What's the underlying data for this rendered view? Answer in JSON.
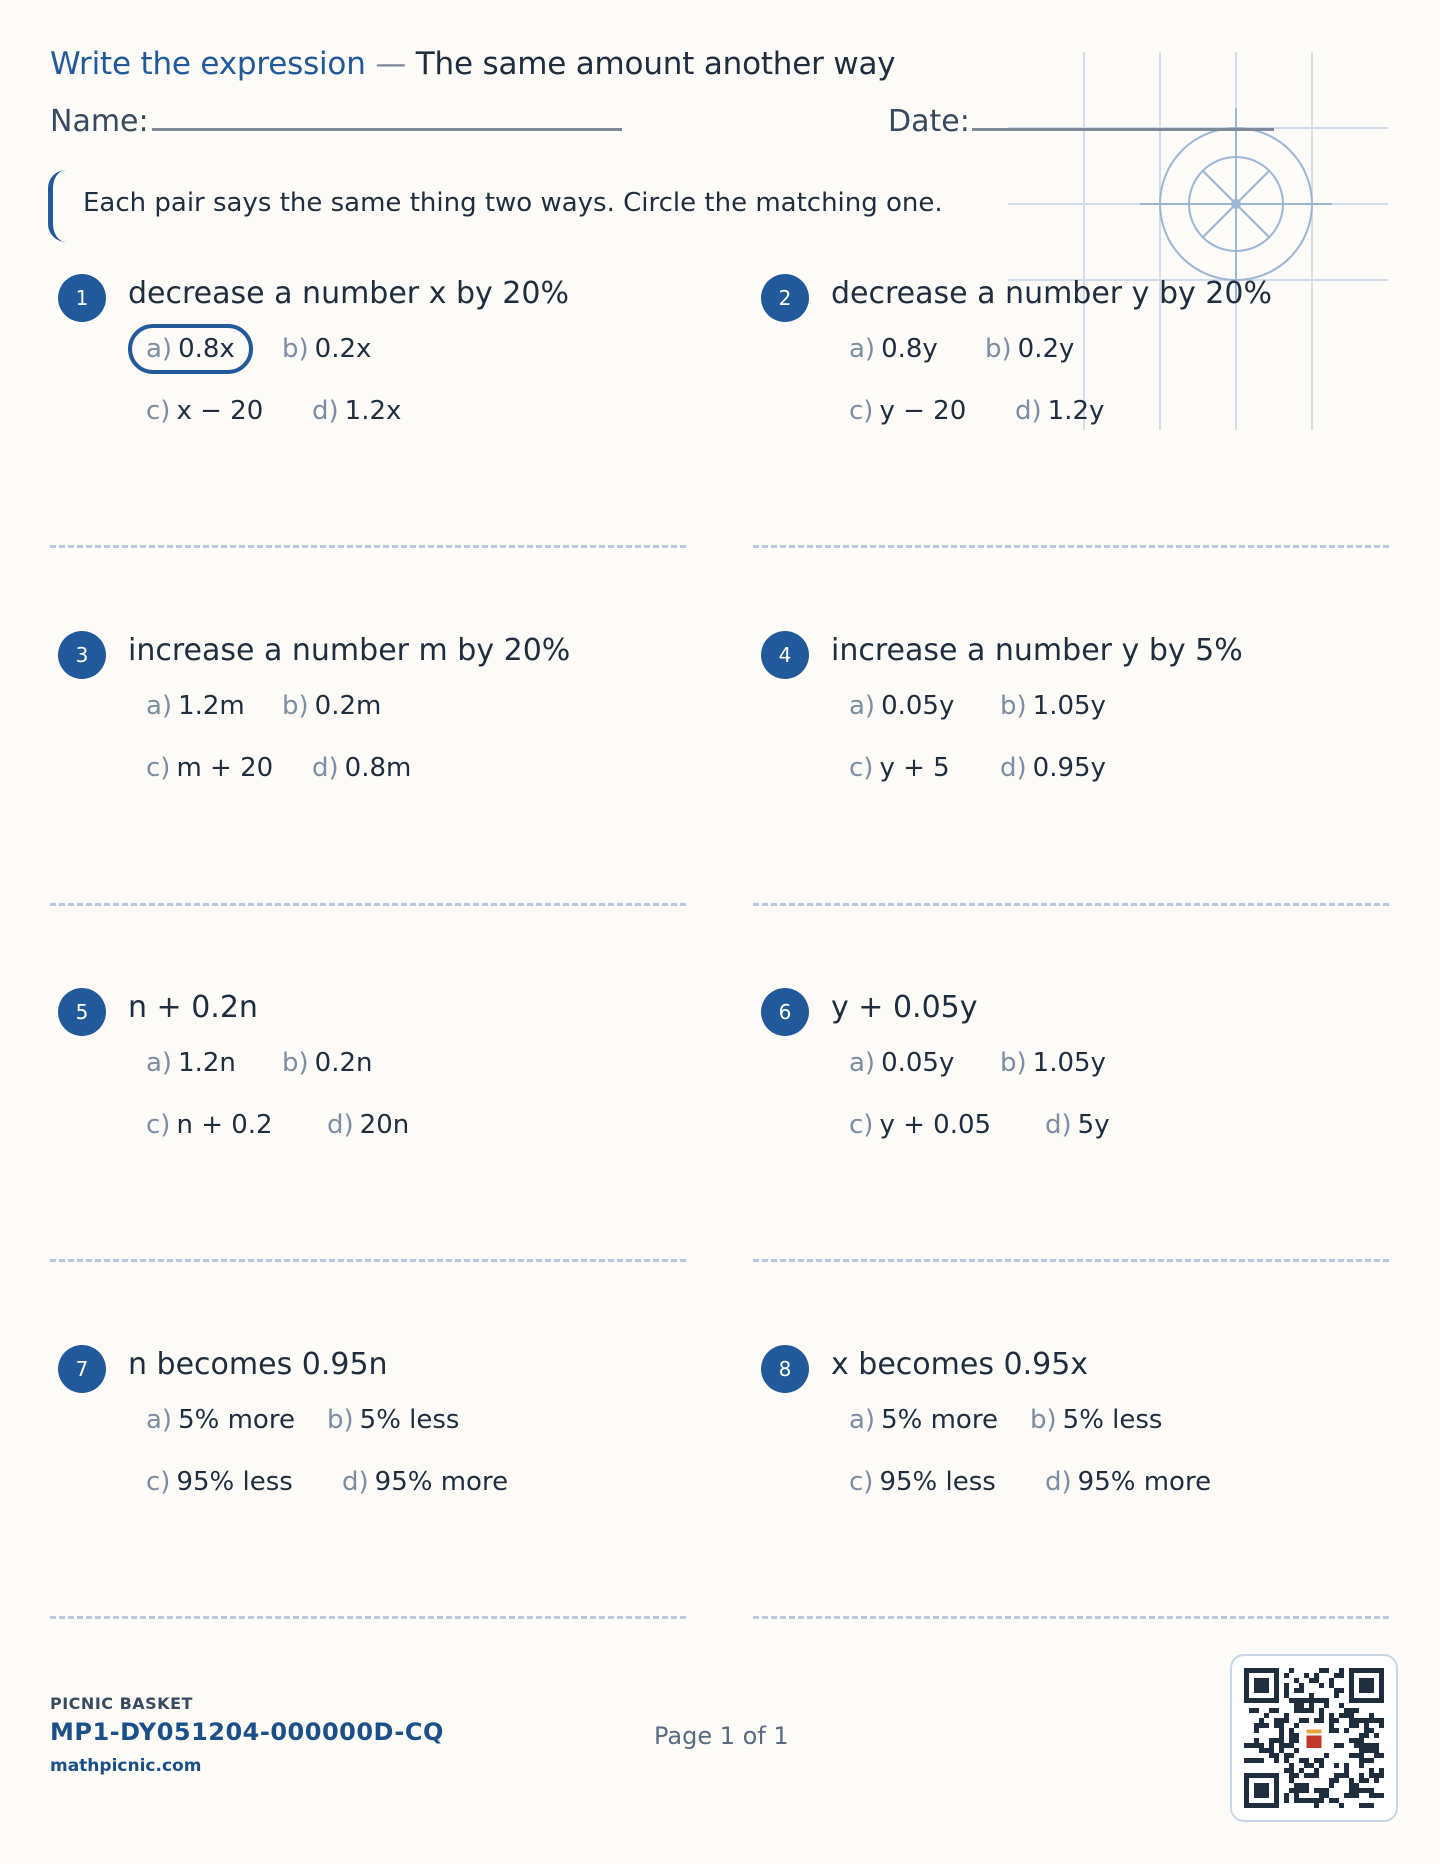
{
  "header": {
    "title_part1": "Write the expression",
    "title_dash": "—",
    "title_part2": "The same amount another way",
    "name_label": "Name:",
    "date_label": "Date:"
  },
  "instructions": "Each pair says the same thing two ways. Circle the matching one.",
  "questions": [
    {
      "num": "1",
      "prompt": "decrease a number x by 20%",
      "options": [
        {
          "label": "a)",
          "text": "0.8x",
          "circled": true
        },
        {
          "label": "b)",
          "text": "0.2x"
        },
        {
          "label": "c)",
          "text": "x − 20"
        },
        {
          "label": "d)",
          "text": "1.2x"
        }
      ]
    },
    {
      "num": "2",
      "prompt": "decrease a number y by 20%",
      "options": [
        {
          "label": "a)",
          "text": "0.8y"
        },
        {
          "label": "b)",
          "text": "0.2y"
        },
        {
          "label": "c)",
          "text": "y − 20"
        },
        {
          "label": "d)",
          "text": "1.2y"
        }
      ]
    },
    {
      "num": "3",
      "prompt": "increase a number m by 20%",
      "options": [
        {
          "label": "a)",
          "text": "1.2m"
        },
        {
          "label": "b)",
          "text": "0.2m"
        },
        {
          "label": "c)",
          "text": "m + 20"
        },
        {
          "label": "d)",
          "text": "0.8m"
        }
      ]
    },
    {
      "num": "4",
      "prompt": "increase a number y by 5%",
      "options": [
        {
          "label": "a)",
          "text": "0.05y"
        },
        {
          "label": "b)",
          "text": "1.05y"
        },
        {
          "label": "c)",
          "text": "y + 5"
        },
        {
          "label": "d)",
          "text": "0.95y"
        }
      ]
    },
    {
      "num": "5",
      "prompt": "n + 0.2n",
      "options": [
        {
          "label": "a)",
          "text": "1.2n"
        },
        {
          "label": "b)",
          "text": "0.2n"
        },
        {
          "label": "c)",
          "text": "n + 0.2"
        },
        {
          "label": "d)",
          "text": "20n"
        }
      ]
    },
    {
      "num": "6",
      "prompt": "y + 0.05y",
      "options": [
        {
          "label": "a)",
          "text": "0.05y"
        },
        {
          "label": "b)",
          "text": "1.05y"
        },
        {
          "label": "c)",
          "text": "y + 0.05"
        },
        {
          "label": "d)",
          "text": "5y"
        }
      ]
    },
    {
      "num": "7",
      "prompt": "n becomes 0.95n",
      "options": [
        {
          "label": "a)",
          "text": "5% more"
        },
        {
          "label": "b)",
          "text": "5% less"
        },
        {
          "label": "c)",
          "text": "95% less"
        },
        {
          "label": "d)",
          "text": "95% more"
        }
      ]
    },
    {
      "num": "8",
      "prompt": "x becomes 0.95x",
      "options": [
        {
          "label": "a)",
          "text": "5% more"
        },
        {
          "label": "b)",
          "text": "5% less"
        },
        {
          "label": "c)",
          "text": "95% less"
        },
        {
          "label": "d)",
          "text": "95% more"
        }
      ]
    }
  ],
  "footer": {
    "brand": "PICNIC BASKET",
    "code": "MP1-DY051204-000000D-CQ",
    "site": "mathpicnic.com",
    "page": "Page 1 of 1"
  },
  "colors": {
    "accent": "#22599b",
    "text": "#1f2d3d",
    "muted": "#7e8ea2",
    "separator": "#b9c8dc",
    "background": "#fcfbf8"
  }
}
